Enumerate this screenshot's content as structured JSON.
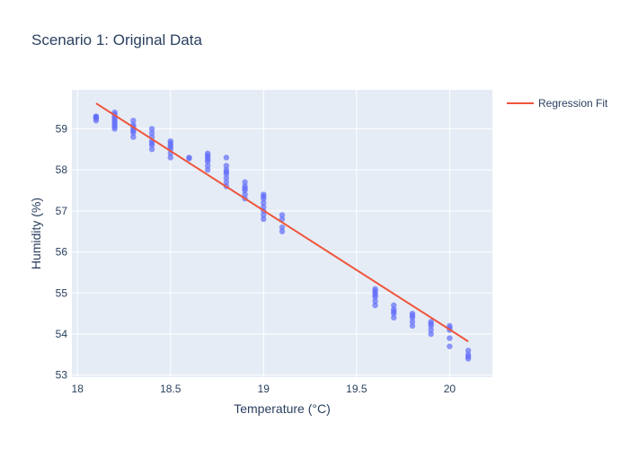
{
  "chart_data": {
    "type": "scatter",
    "title": "Scenario 1: Original Data",
    "xlabel": "Temperature (°C)",
    "ylabel": "Humidity (%)",
    "xlim": [
      17.97,
      20.23
    ],
    "ylim": [
      52.95,
      59.95
    ],
    "x_ticks": [
      18,
      18.5,
      19,
      19.5,
      20
    ],
    "x_tick_labels": [
      "18",
      "18.5",
      "19",
      "19.5",
      "20"
    ],
    "y_ticks": [
      53,
      54,
      55,
      56,
      57,
      58,
      59
    ],
    "y_tick_labels": [
      "53",
      "54",
      "55",
      "56",
      "57",
      "58",
      "59"
    ],
    "grid": true,
    "legend_position": "top-right",
    "colors": {
      "points": "#636efa",
      "regression": "#ef553b",
      "plot_background": "#e5ecf6",
      "grid": "#ffffff"
    },
    "series": [
      {
        "mode": "markers",
        "points": [
          [
            18.1,
            59.3
          ],
          [
            18.1,
            59.25
          ],
          [
            18.1,
            59.2
          ],
          [
            18.1,
            59.3
          ],
          [
            18.1,
            59.28
          ],
          [
            18.2,
            59.4
          ],
          [
            18.2,
            59.35
          ],
          [
            18.2,
            59.3
          ],
          [
            18.2,
            59.2
          ],
          [
            18.2,
            59.1
          ],
          [
            18.2,
            59.05
          ],
          [
            18.2,
            59.0
          ],
          [
            18.2,
            59.15
          ],
          [
            18.2,
            59.25
          ],
          [
            18.3,
            59.2
          ],
          [
            18.3,
            59.1
          ],
          [
            18.3,
            59.0
          ],
          [
            18.3,
            58.9
          ],
          [
            18.3,
            58.8
          ],
          [
            18.3,
            59.05
          ],
          [
            18.3,
            58.95
          ],
          [
            18.4,
            59.0
          ],
          [
            18.4,
            58.9
          ],
          [
            18.4,
            58.8
          ],
          [
            18.4,
            58.7
          ],
          [
            18.4,
            58.6
          ],
          [
            18.4,
            58.5
          ],
          [
            18.4,
            58.65
          ],
          [
            18.5,
            58.7
          ],
          [
            18.5,
            58.65
          ],
          [
            18.5,
            58.6
          ],
          [
            18.5,
            58.5
          ],
          [
            18.5,
            58.4
          ],
          [
            18.5,
            58.3
          ],
          [
            18.5,
            58.55
          ],
          [
            18.6,
            58.3
          ],
          [
            18.6,
            58.28
          ],
          [
            18.7,
            58.4
          ],
          [
            18.7,
            58.3
          ],
          [
            18.7,
            58.2
          ],
          [
            18.7,
            58.1
          ],
          [
            18.7,
            58.0
          ],
          [
            18.7,
            58.35
          ],
          [
            18.7,
            58.25
          ],
          [
            18.8,
            58.3
          ],
          [
            18.8,
            58.1
          ],
          [
            18.8,
            58.0
          ],
          [
            18.8,
            57.9
          ],
          [
            18.8,
            57.8
          ],
          [
            18.8,
            57.7
          ],
          [
            18.8,
            57.6
          ],
          [
            18.8,
            57.95
          ],
          [
            18.9,
            57.7
          ],
          [
            18.9,
            57.6
          ],
          [
            18.9,
            57.5
          ],
          [
            18.9,
            57.4
          ],
          [
            18.9,
            57.3
          ],
          [
            18.9,
            57.55
          ],
          [
            19.0,
            57.4
          ],
          [
            19.0,
            57.3
          ],
          [
            19.0,
            57.2
          ],
          [
            19.0,
            57.1
          ],
          [
            19.0,
            57.0
          ],
          [
            19.0,
            56.9
          ],
          [
            19.0,
            56.8
          ],
          [
            19.0,
            57.35
          ],
          [
            19.1,
            56.9
          ],
          [
            19.1,
            56.8
          ],
          [
            19.1,
            56.6
          ],
          [
            19.1,
            56.5
          ],
          [
            19.6,
            55.1
          ],
          [
            19.6,
            55.0
          ],
          [
            19.6,
            54.95
          ],
          [
            19.6,
            54.9
          ],
          [
            19.6,
            54.8
          ],
          [
            19.6,
            54.7
          ],
          [
            19.6,
            55.05
          ],
          [
            19.7,
            54.7
          ],
          [
            19.7,
            54.6
          ],
          [
            19.7,
            54.5
          ],
          [
            19.7,
            54.4
          ],
          [
            19.7,
            54.55
          ],
          [
            19.8,
            54.5
          ],
          [
            19.8,
            54.4
          ],
          [
            19.8,
            54.3
          ],
          [
            19.8,
            54.2
          ],
          [
            19.8,
            54.45
          ],
          [
            19.9,
            54.3
          ],
          [
            19.9,
            54.2
          ],
          [
            19.9,
            54.1
          ],
          [
            19.9,
            54.0
          ],
          [
            19.9,
            54.25
          ],
          [
            20.0,
            54.2
          ],
          [
            20.0,
            54.15
          ],
          [
            20.0,
            54.1
          ],
          [
            20.0,
            53.9
          ],
          [
            20.0,
            53.7
          ],
          [
            20.1,
            53.6
          ],
          [
            20.1,
            53.5
          ],
          [
            20.1,
            53.45
          ],
          [
            20.1,
            53.4
          ]
        ]
      },
      {
        "name": "Regression Fit",
        "mode": "lines",
        "points": [
          [
            18.1,
            59.62
          ],
          [
            20.1,
            53.82
          ]
        ]
      }
    ]
  }
}
